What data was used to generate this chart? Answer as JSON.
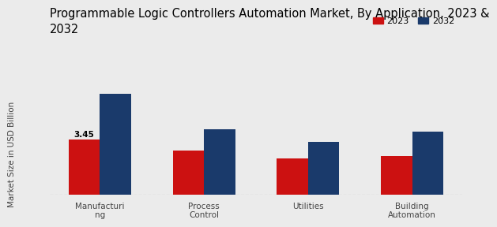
{
  "title": "Programmable Logic Controllers Automation Market, By Application, 2023 &\n2032",
  "ylabel": "Market Size in USD Billion",
  "categories": [
    "Manufacturi\nng",
    "Process\nControl",
    "Utilities",
    "Building\nAutomation"
  ],
  "values_2023": [
    3.45,
    2.75,
    2.25,
    2.4
  ],
  "values_2032": [
    6.3,
    4.1,
    3.3,
    3.95
  ],
  "color_2023": "#cc1111",
  "color_2032": "#1a3a6b",
  "annotation_text": "3.45",
  "annotation_bar_index": 0,
  "background_color": "#ebebeb",
  "legend_labels": [
    "2023",
    "2032"
  ],
  "bar_width": 0.3,
  "ylim": [
    0,
    8
  ],
  "title_fontsize": 10.5,
  "ylabel_fontsize": 7.5,
  "tick_fontsize": 7.5,
  "legend_fontsize": 8
}
